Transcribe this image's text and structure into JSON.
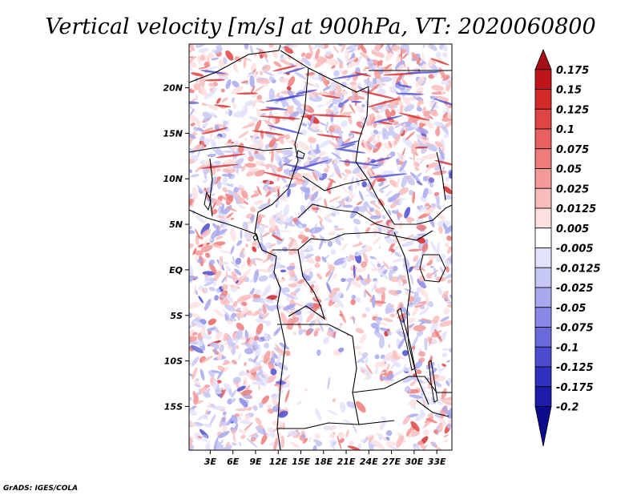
{
  "chart_data": {
    "type": "heatmap",
    "title": "Vertical velocity [m/s] at 900hPa, VT: 2020060800",
    "variable": "Vertical velocity",
    "units": "m/s",
    "level": "900hPa",
    "valid_time": "2020060800",
    "x_ticks": [
      {
        "value": 3,
        "label": "3E"
      },
      {
        "value": 6,
        "label": "6E"
      },
      {
        "value": 9,
        "label": "9E"
      },
      {
        "value": 12,
        "label": "12E"
      },
      {
        "value": 15,
        "label": "15E"
      },
      {
        "value": 18,
        "label": "18E"
      },
      {
        "value": 21,
        "label": "21E"
      },
      {
        "value": 24,
        "label": "24E"
      },
      {
        "value": 27,
        "label": "27E"
      },
      {
        "value": 30,
        "label": "30E"
      },
      {
        "value": 33,
        "label": "33E"
      }
    ],
    "y_ticks": [
      {
        "value": 20,
        "label": "20N"
      },
      {
        "value": 15,
        "label": "15N"
      },
      {
        "value": 10,
        "label": "10N"
      },
      {
        "value": 5,
        "label": "5N"
      },
      {
        "value": 0,
        "label": "EQ"
      },
      {
        "value": -5,
        "label": "5S"
      },
      {
        "value": -10,
        "label": "10S"
      },
      {
        "value": -15,
        "label": "15S"
      }
    ],
    "xlim": [
      0.2,
      35
    ],
    "ylim": [
      -19.8,
      24.8
    ],
    "colorbar": {
      "labels": [
        "0.175",
        "0.15",
        "0.125",
        "0.1",
        "0.075",
        "0.05",
        "0.025",
        "0.0125",
        "0.005",
        "-0.005",
        "-0.0125",
        "-0.025",
        "-0.05",
        "-0.075",
        "-0.1",
        "-0.125",
        "-0.175",
        "-0.2"
      ],
      "colors": [
        "#a50f15",
        "#c0141b",
        "#d52a2a",
        "#e04545",
        "#e86060",
        "#ef7b7b",
        "#f59a9a",
        "#f9bcbc",
        "#fde0e0",
        "#ffffff",
        "#e2e2fb",
        "#c7c7f5",
        "#a8a8ee",
        "#8888e6",
        "#6a6adc",
        "#4c4cd0",
        "#3030c0",
        "#1c1ca8",
        "#0c0c8c"
      ]
    },
    "credit": "GrADS: IGES/COLA"
  }
}
